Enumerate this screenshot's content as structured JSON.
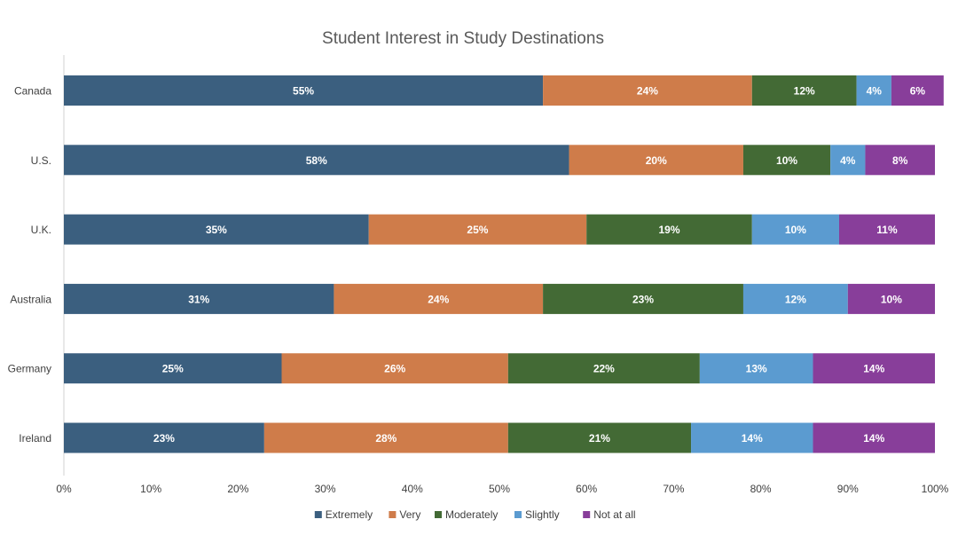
{
  "chart_data": {
    "type": "bar",
    "orientation": "horizontal",
    "stacked": true,
    "title": "Student Interest in Study Destinations",
    "xlabel": "",
    "ylabel": "",
    "xlim": [
      0,
      100
    ],
    "x_ticks": [
      "0%",
      "10%",
      "20%",
      "30%",
      "40%",
      "50%",
      "60%",
      "70%",
      "80%",
      "90%",
      "100%"
    ],
    "categories": [
      "Canada",
      "U.S.",
      "U.K.",
      "Australia",
      "Germany",
      "Ireland"
    ],
    "series": [
      {
        "name": "Extremely",
        "color": "#3B5F7F",
        "values": [
          55,
          58,
          35,
          31,
          25,
          23
        ]
      },
      {
        "name": "Very",
        "color": "#CF7C4A",
        "values": [
          24,
          20,
          25,
          24,
          26,
          28
        ]
      },
      {
        "name": "Moderately",
        "color": "#436A35",
        "values": [
          12,
          10,
          19,
          23,
          22,
          21
        ]
      },
      {
        "name": "Slightly",
        "color": "#5B9BD0",
        "values": [
          4,
          4,
          10,
          12,
          13,
          14
        ]
      },
      {
        "name": "Not at all",
        "color": "#883E9A",
        "values": [
          6,
          8,
          11,
          10,
          14,
          14
        ]
      }
    ],
    "data_label_format": "{v}%",
    "legend_position": "bottom",
    "grid": false
  },
  "colors": {
    "title": "#595959",
    "axis_text": "#404040",
    "axis_line": "#d0d0d0",
    "label_text": "#ffffff"
  }
}
